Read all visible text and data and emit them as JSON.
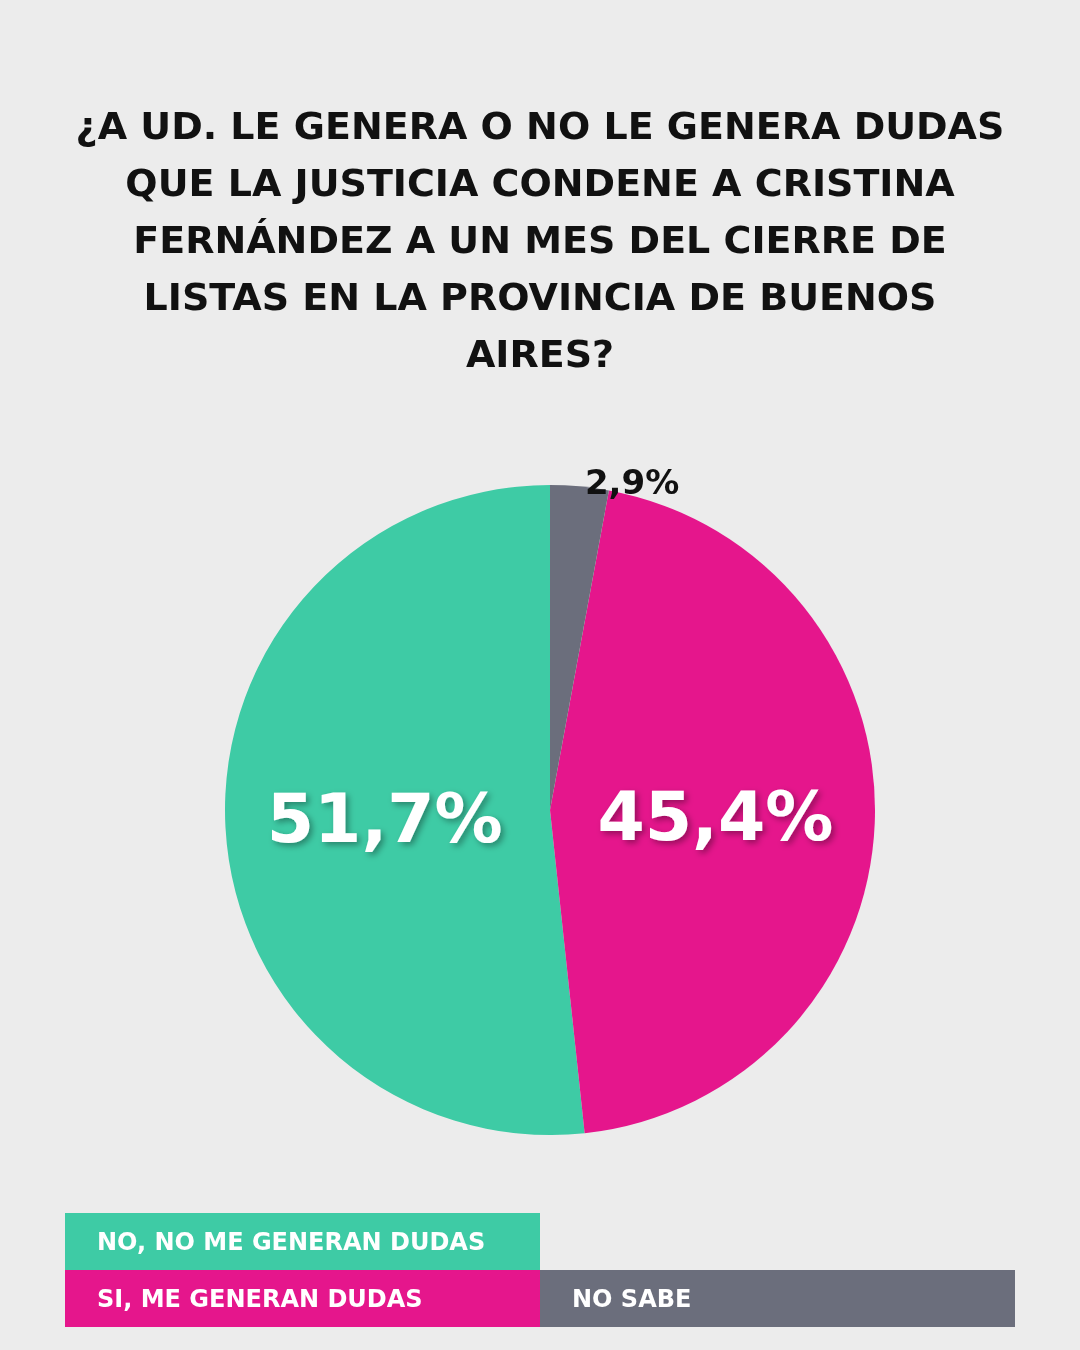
{
  "chart_data": {
    "type": "pie",
    "title": "¿A UD. LE GENERA O NO LE GENERA DUDAS QUE LA JUSTICIA CONDENE A CRISTINA FERNÁNDEZ A UN MES DEL CIERRE DE LISTAS EN LA PROVINCIA DE BUENOS AIRES?",
    "categories": [
      "NO, NO ME GENERAN DUDAS",
      "SI, ME GENERAN DUDAS",
      "NO SABE"
    ],
    "values": [
      51.7,
      45.4,
      2.9
    ],
    "value_labels": [
      "51,7%",
      "45,4%",
      "2,9%"
    ],
    "colors": [
      "#3ecba5",
      "#e5168c",
      "#6b6e7c"
    ],
    "legend": "bottom"
  }
}
